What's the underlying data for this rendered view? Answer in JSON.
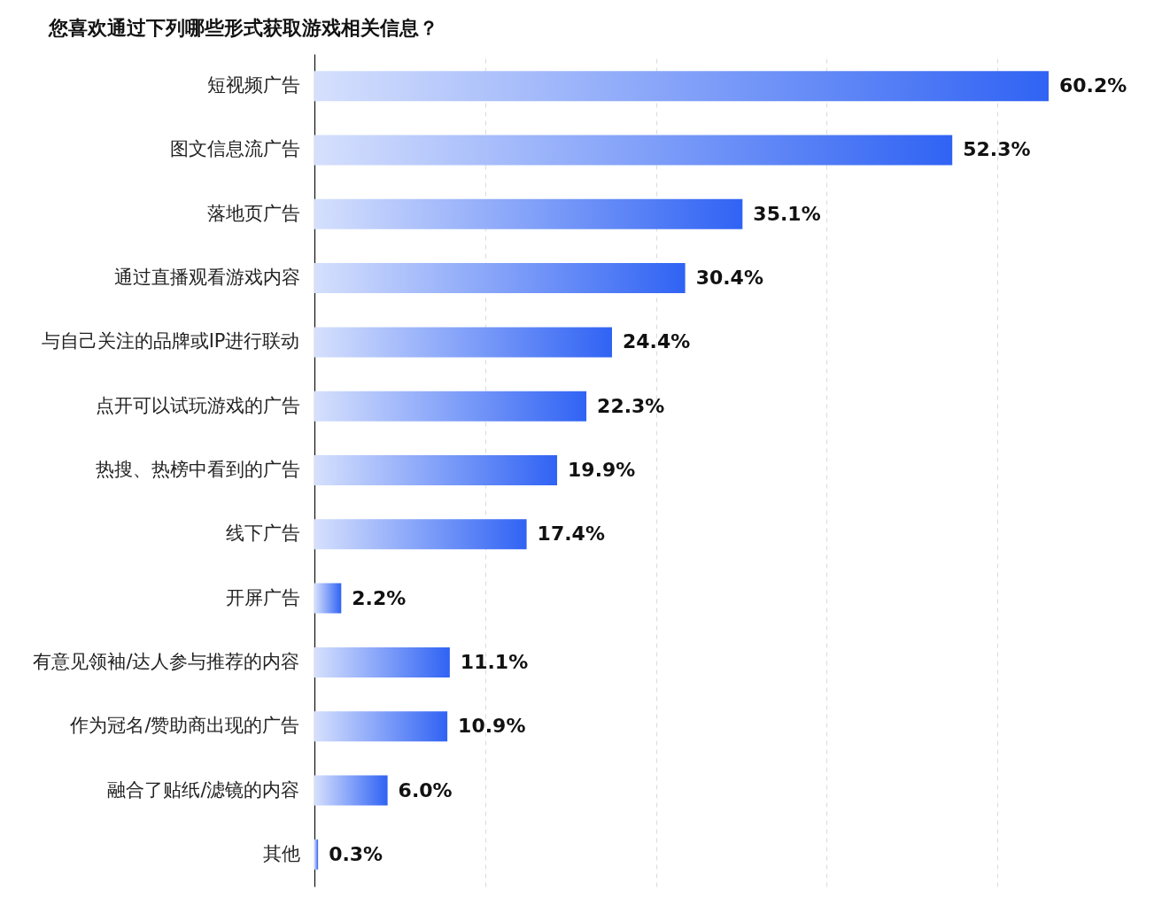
{
  "chart_data": {
    "type": "bar",
    "orientation": "horizontal",
    "title": "您喜欢通过下列哪些形式获取游戏相关信息？",
    "categories": [
      "短视频广告",
      "图文信息流广告",
      "落地页广告",
      "通过直播观看游戏内容",
      "与自己关注的品牌或IP进行联动",
      "点开可以试玩游戏的广告",
      "热搜、热榜中看到的广告",
      "线下广告",
      "开屏广告",
      "有意见领袖/达人参与推荐的内容",
      "作为冠名/赞助商出现的广告",
      "融合了贴纸/滤镜的内容",
      "其他"
    ],
    "values": [
      60.2,
      52.3,
      35.1,
      30.4,
      24.4,
      22.3,
      19.9,
      17.4,
      2.2,
      11.1,
      10.9,
      6.0,
      0.3
    ],
    "value_labels": [
      "60.2%",
      "52.3%",
      "35.1%",
      "30.4%",
      "24.4%",
      "22.3%",
      "19.9%",
      "17.4%",
      "2.2%",
      "11.1%",
      "10.9%",
      "6.0%",
      "0.3%"
    ],
    "color": "#3063f4",
    "xticks": [
      {
        "value": 14,
        "label": null
      },
      {
        "value": 28,
        "label": null
      },
      {
        "value": 42,
        "label": null
      },
      {
        "value": 56,
        "label": null
      }
    ],
    "grid": "x",
    "tick_labels": "y"
  }
}
